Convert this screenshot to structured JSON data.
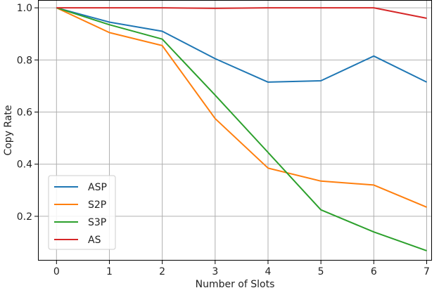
{
  "chart_data": {
    "type": "line",
    "xlabel": "Number of Slots",
    "ylabel": "Copy Rate",
    "x": [
      0,
      1,
      2,
      3,
      4,
      5,
      6,
      7
    ],
    "xlim": [
      -0.35,
      7.1
    ],
    "ylim": [
      0.03,
      1.03
    ],
    "xticks": [
      0,
      1,
      2,
      3,
      4,
      5,
      6,
      7
    ],
    "yticks": [
      0.2,
      0.4,
      0.6,
      0.8,
      1.0
    ],
    "ytick_labels": [
      "0.2",
      "0.4",
      "0.6",
      "0.8",
      "1.0"
    ],
    "grid": true,
    "legend_position": "bottom-left",
    "series": [
      {
        "name": "ASP",
        "color": "#1f77b4",
        "values": [
          1.0,
          0.945,
          0.91,
          0.805,
          0.715,
          0.72,
          0.815,
          0.715
        ]
      },
      {
        "name": "S2P",
        "color": "#ff7f0e",
        "values": [
          1.0,
          0.905,
          0.855,
          0.575,
          0.385,
          0.335,
          0.32,
          0.235
        ]
      },
      {
        "name": "S3P",
        "color": "#2ca02c",
        "values": [
          1.0,
          0.935,
          0.88,
          0.665,
          0.445,
          0.225,
          0.14,
          0.068
        ]
      },
      {
        "name": "AS",
        "color": "#d62728",
        "values": [
          1.0,
          1.0,
          1.0,
          0.998,
          1.0,
          1.0,
          1.0,
          0.96
        ]
      }
    ]
  }
}
